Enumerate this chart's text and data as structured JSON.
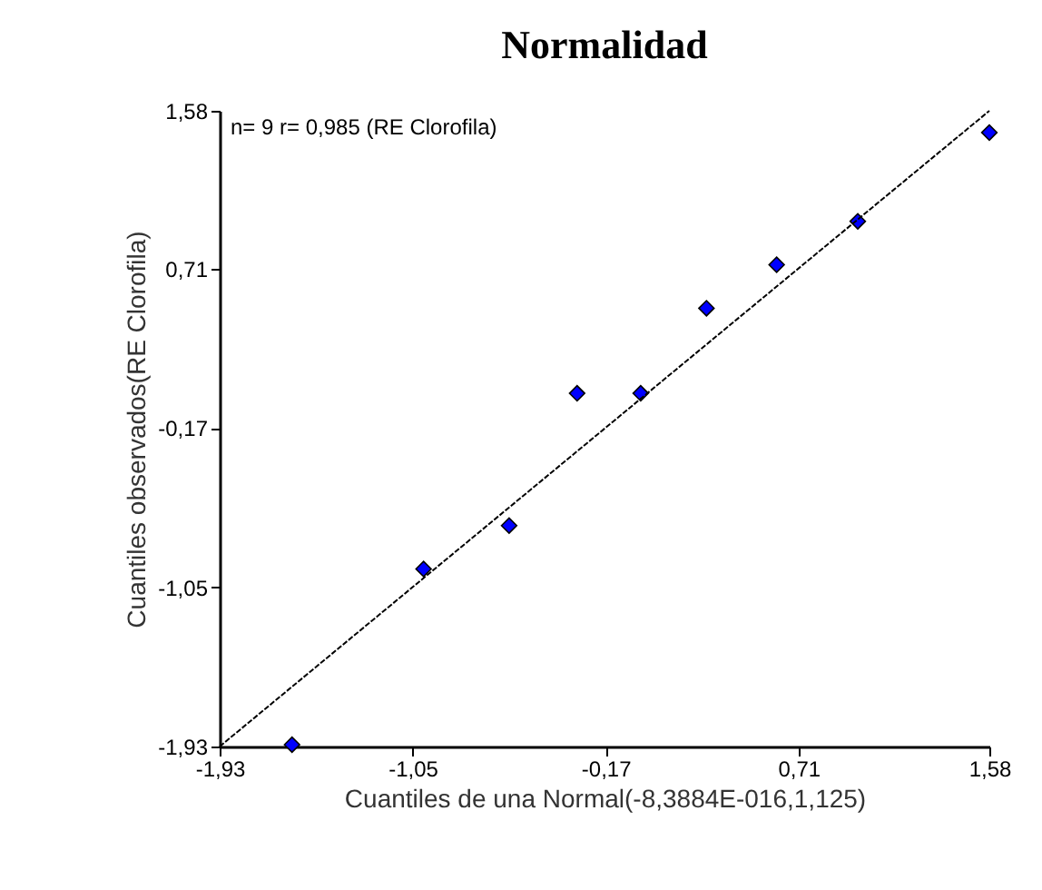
{
  "chart_data": {
    "type": "scatter",
    "title": "Normalidad",
    "xlabel": "Cuantiles de una Normal(-8,3884E-016,1,125)",
    "ylabel": "Cuantiles observados(RE Clorofila)",
    "annotations": [
      "n= 9 r= 0,985 (RE Clorofila)"
    ],
    "xlim": [
      -1.93,
      1.58
    ],
    "ylim": [
      -1.93,
      1.58
    ],
    "xticks": [
      {
        "value": -1.93,
        "label": "-1,93"
      },
      {
        "value": -1.05,
        "label": "-1,05"
      },
      {
        "value": -0.17,
        "label": "-0,17"
      },
      {
        "value": 0.71,
        "label": "0,71"
      },
      {
        "value": 1.58,
        "label": "1,58"
      }
    ],
    "yticks": [
      {
        "value": -1.93,
        "label": "-1,93"
      },
      {
        "value": -1.05,
        "label": "-1,05"
      },
      {
        "value": -0.17,
        "label": "-0,17"
      },
      {
        "value": 0.71,
        "label": "0,71"
      },
      {
        "value": 1.58,
        "label": "1,58"
      }
    ],
    "grid": false,
    "legend": false,
    "series": [
      {
        "type": "scatter",
        "color": "#0000ff",
        "marker": "diamond",
        "x": [
          -1.6,
          -1.0,
          -0.61,
          -0.3,
          -0.01,
          0.29,
          0.61,
          0.98,
          1.58
        ],
        "values": [
          -1.92,
          -0.95,
          -0.71,
          0.02,
          0.02,
          0.49,
          0.73,
          0.97,
          1.46
        ]
      },
      {
        "type": "line",
        "color": "#000000",
        "line_style": "dashed",
        "x": [
          -1.93,
          1.58
        ],
        "values": [
          -1.93,
          1.58
        ]
      }
    ]
  }
}
